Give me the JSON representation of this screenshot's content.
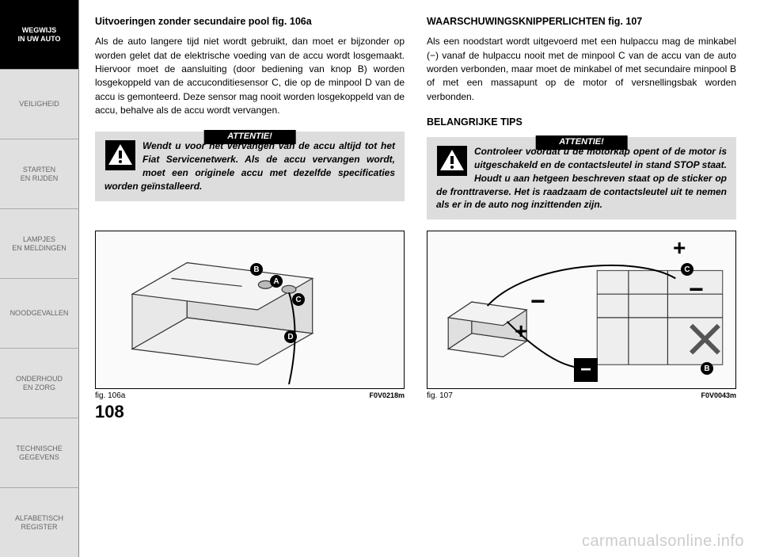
{
  "sidebar": {
    "items": [
      {
        "label": "WEGWIJS\nIN UW AUTO",
        "active": true
      },
      {
        "label": "VEILIGHEID",
        "active": false
      },
      {
        "label": "STARTEN\nEN RIJDEN",
        "active": false
      },
      {
        "label": "LAMPJES\nEN MELDINGEN",
        "active": false
      },
      {
        "label": "NOODGEVALLEN",
        "active": false
      },
      {
        "label": "ONDERHOUD\nEN ZORG",
        "active": false
      },
      {
        "label": "TECHNISCHE\nGEGEVENS",
        "active": false
      },
      {
        "label": "ALFABETISCH\nREGISTER",
        "active": false
      }
    ]
  },
  "page_number": "108",
  "left_column": {
    "heading": "Uitvoeringen zonder secundaire pool fig. 106a",
    "paragraph": "Als de auto langere tijd niet wordt gebruikt, dan moet er bijzonder op worden gelet dat de elektrische voeding van de accu wordt losgemaakt. Hiervoor moet de aansluiting (door bediening van knop B) worden losgekoppeld van de accuconditiesensor C, die op de minpool D van de accu is gemonteerd. Deze sensor mag nooit worden losgekoppeld van de accu, behalve als de accu wordt vervangen.",
    "warning": {
      "header": "ATTENTIE!",
      "text": "Wendt u voor het vervangen van de accu altijd tot het Fiat Servicenetwerk. Als de accu vervangen wordt, moet een originele accu met dezelfde specificaties worden geïnstalleerd."
    }
  },
  "right_column": {
    "heading": "WAARSCHUWINGSKNIPPERLICHTEN fig. 107",
    "paragraph": "Als een noodstart wordt uitgevoerd met een hulpaccu mag de minkabel (−) vanaf de hulpaccu nooit met de minpool C van de accu van de auto worden verbonden, maar moet de minkabel of met secundaire minpool B of met een massapunt op de motor of versnellingsbak worden verbonden.",
    "tips_label": "BELANGRIJKE TIPS",
    "warning": {
      "header": "ATTENTIE!",
      "text": "Controleer voordat u de motorkap opent of de motor is uitgeschakeld en de contactsleutel in stand STOP staat. Houdt u aan hetgeen beschreven staat op de sticker op de fronttraverse. Het is raadzaam de contactsleutel uit te nemen als er in de auto nog inzittenden zijn."
    }
  },
  "figures": {
    "fig106a": {
      "caption": "fig. 106a",
      "code": "F0V0218m",
      "markers": [
        "A",
        "B",
        "C",
        "D"
      ]
    },
    "fig107": {
      "caption": "fig. 107",
      "code": "F0V0043m",
      "markers": [
        "B",
        "C"
      ]
    }
  },
  "watermark": "carmanualsonline.info",
  "colors": {
    "sidebar_active_bg": "#000000",
    "sidebar_active_fg": "#ffffff",
    "sidebar_inactive_bg": "#e0e0e0",
    "sidebar_inactive_fg": "#666666",
    "warning_bg": "#dddddd",
    "warning_header_bg": "#000000",
    "warning_header_fg": "#ffffff",
    "page_bg": "#ffffff",
    "watermark_color": "#cccccc"
  }
}
